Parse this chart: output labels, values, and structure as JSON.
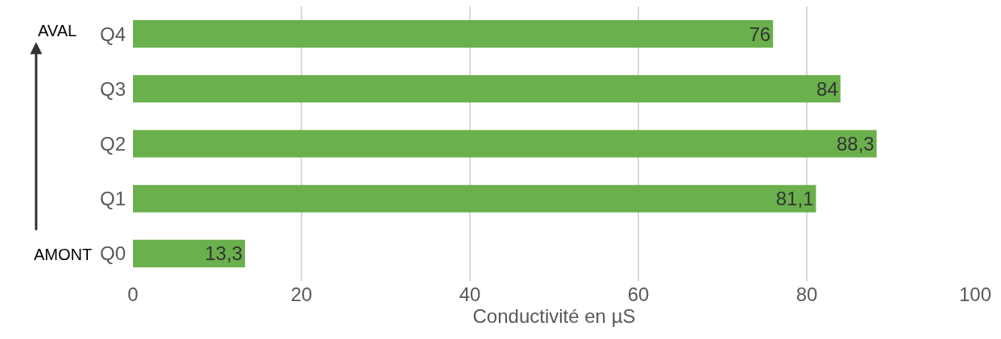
{
  "chart_data": {
    "type": "bar",
    "orientation": "horizontal",
    "xlabel": "Conductivité en µS",
    "categories": [
      "Q4",
      "Q3",
      "Q2",
      "Q1",
      "Q0"
    ],
    "values": [
      76,
      84,
      88.3,
      81.1,
      13.3
    ],
    "value_labels": [
      "76",
      "84",
      "88,3",
      "81,1",
      "13,3"
    ],
    "color": "#6ab04c",
    "xlim": [
      0,
      100
    ],
    "xticks": [
      0,
      20,
      40,
      60,
      80,
      100
    ],
    "grid": "x",
    "annotations": [
      "AVAL",
      "AMONT"
    ]
  }
}
